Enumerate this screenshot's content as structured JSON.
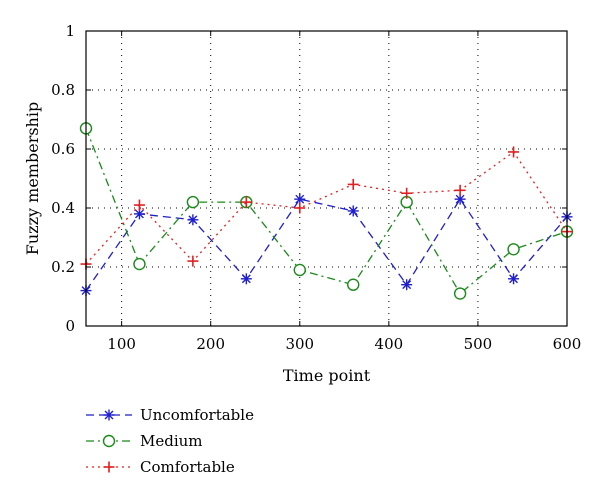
{
  "chart_data": {
    "type": "line",
    "title": "",
    "xlabel": "Time point",
    "ylabel": "Fuzzy membership",
    "xlim": [
      60,
      600
    ],
    "ylim": [
      0,
      1
    ],
    "xticks": [
      100,
      200,
      300,
      400,
      500,
      600
    ],
    "yticks": [
      0,
      0.2,
      0.4,
      0.6,
      0.8,
      1
    ],
    "ytick_labels": [
      "0",
      "0.2",
      "0.4",
      "0.6",
      "0.8",
      "1"
    ],
    "grid": true,
    "legend_position": "bottom-left, below plot",
    "x": [
      60,
      120,
      180,
      240,
      300,
      360,
      420,
      480,
      540,
      600
    ],
    "series": [
      {
        "name": "Uncomfortable",
        "color": "#1f1fcc",
        "line_style": "dashed",
        "marker": "asterisk",
        "values": [
          0.12,
          0.38,
          0.36,
          0.16,
          0.43,
          0.39,
          0.14,
          0.43,
          0.16,
          0.37
        ]
      },
      {
        "name": "Medium",
        "color": "#1a8a1a",
        "line_style": "dash-dot",
        "marker": "circle",
        "values": [
          0.67,
          0.21,
          0.42,
          0.42,
          0.19,
          0.14,
          0.42,
          0.11,
          0.26,
          0.32
        ]
      },
      {
        "name": "Comfortable",
        "color": "#e02020",
        "line_style": "dotted",
        "marker": "plus",
        "values": [
          0.21,
          0.41,
          0.22,
          0.42,
          0.4,
          0.48,
          0.45,
          0.46,
          0.59,
          0.32
        ]
      }
    ]
  }
}
